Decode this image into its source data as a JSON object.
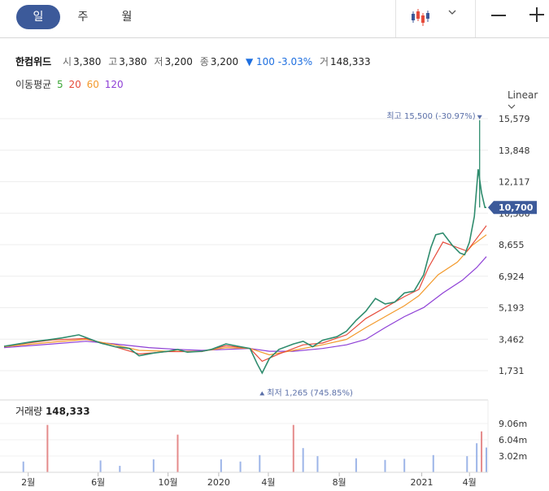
{
  "toolbar": {
    "tabs": [
      "일",
      "주",
      "월"
    ],
    "active_tab": "일",
    "chart_type_icon": "candlestick-icon",
    "dropdown_icon": "chevron-down-icon",
    "zoom_out_icon": "minus-icon",
    "zoom_in_icon": "plus-icon"
  },
  "quote": {
    "name": "한컴위드",
    "open_label": "시",
    "open": "3,380",
    "high_label": "고",
    "high": "3,380",
    "low_label": "저",
    "low": "3,200",
    "close_label": "종",
    "close": "3,200",
    "change": "▼ 100 -3.03%",
    "volume_label": "거",
    "volume": "148,333"
  },
  "ma": {
    "label": "이동평균",
    "periods": [
      "5",
      "20",
      "60",
      "120"
    ],
    "colors": [
      "#3aa635",
      "#e64b3b",
      "#f39a2c",
      "#8e3fd6"
    ]
  },
  "scale": {
    "label": "Linear"
  },
  "chart_data": {
    "type": "line",
    "y_ticks": [
      "15,579",
      "13,848",
      "12,117",
      "10,386",
      "8,655",
      "6,924",
      "5,193",
      "3,462",
      "1,731"
    ],
    "ylim": [
      0,
      16500
    ],
    "x_ticks": [
      {
        "label": "2월",
        "t": 0.05
      },
      {
        "label": "6월",
        "t": 0.195
      },
      {
        "label": "10월",
        "t": 0.34
      },
      {
        "label": "2020",
        "t": 0.445
      },
      {
        "label": "4월",
        "t": 0.548
      },
      {
        "label": "8월",
        "t": 0.695
      },
      {
        "label": "2021",
        "t": 0.866
      },
      {
        "label": "4월",
        "t": 0.965
      }
    ],
    "price": [
      [
        0,
        3070
      ],
      [
        0.03,
        3200
      ],
      [
        0.06,
        3330
      ],
      [
        0.09,
        3420
      ],
      [
        0.12,
        3530
      ],
      [
        0.155,
        3700
      ],
      [
        0.17,
        3550
      ],
      [
        0.2,
        3250
      ],
      [
        0.23,
        3050
      ],
      [
        0.26,
        2950
      ],
      [
        0.28,
        2550
      ],
      [
        0.31,
        2700
      ],
      [
        0.34,
        2800
      ],
      [
        0.36,
        2900
      ],
      [
        0.38,
        2750
      ],
      [
        0.41,
        2800
      ],
      [
        0.43,
        2900
      ],
      [
        0.46,
        3200
      ],
      [
        0.49,
        3050
      ],
      [
        0.51,
        2950
      ],
      [
        0.525,
        2100
      ],
      [
        0.535,
        1600
      ],
      [
        0.55,
        2400
      ],
      [
        0.57,
        2900
      ],
      [
        0.6,
        3200
      ],
      [
        0.62,
        3350
      ],
      [
        0.64,
        3050
      ],
      [
        0.66,
        3400
      ],
      [
        0.69,
        3600
      ],
      [
        0.71,
        3900
      ],
      [
        0.73,
        4500
      ],
      [
        0.75,
        5000
      ],
      [
        0.77,
        5700
      ],
      [
        0.79,
        5400
      ],
      [
        0.81,
        5500
      ],
      [
        0.83,
        6000
      ],
      [
        0.85,
        6100
      ],
      [
        0.87,
        7000
      ],
      [
        0.885,
        8500
      ],
      [
        0.895,
        9200
      ],
      [
        0.91,
        9300
      ],
      [
        0.93,
        8600
      ],
      [
        0.945,
        8200
      ],
      [
        0.955,
        8100
      ],
      [
        0.965,
        8800
      ],
      [
        0.975,
        10200
      ],
      [
        0.983,
        12800
      ],
      [
        0.99,
        11500
      ],
      [
        0.997,
        10700
      ],
      [
        1.0,
        10700
      ]
    ],
    "ma20": [
      [
        0,
        3080
      ],
      [
        0.1,
        3420
      ],
      [
        0.17,
        3500
      ],
      [
        0.23,
        3050
      ],
      [
        0.28,
        2650
      ],
      [
        0.34,
        2780
      ],
      [
        0.41,
        2780
      ],
      [
        0.46,
        3100
      ],
      [
        0.51,
        2950
      ],
      [
        0.535,
        2250
      ],
      [
        0.57,
        2650
      ],
      [
        0.62,
        3150
      ],
      [
        0.66,
        3250
      ],
      [
        0.71,
        3700
      ],
      [
        0.75,
        4600
      ],
      [
        0.79,
        5200
      ],
      [
        0.83,
        5800
      ],
      [
        0.86,
        6200
      ],
      [
        0.88,
        7400
      ],
      [
        0.91,
        8800
      ],
      [
        0.94,
        8500
      ],
      [
        0.96,
        8300
      ],
      [
        0.98,
        9000
      ],
      [
        1.0,
        9700
      ]
    ],
    "ma60": [
      [
        0,
        3050
      ],
      [
        0.1,
        3300
      ],
      [
        0.17,
        3450
      ],
      [
        0.23,
        3150
      ],
      [
        0.28,
        2850
      ],
      [
        0.34,
        2800
      ],
      [
        0.41,
        2800
      ],
      [
        0.46,
        3000
      ],
      [
        0.51,
        2950
      ],
      [
        0.55,
        2600
      ],
      [
        0.6,
        2850
      ],
      [
        0.66,
        3150
      ],
      [
        0.71,
        3450
      ],
      [
        0.75,
        4100
      ],
      [
        0.79,
        4700
      ],
      [
        0.83,
        5300
      ],
      [
        0.86,
        5850
      ],
      [
        0.9,
        7000
      ],
      [
        0.94,
        7700
      ],
      [
        0.97,
        8600
      ],
      [
        1.0,
        9200
      ]
    ],
    "ma120": [
      [
        0,
        3000
      ],
      [
        0.1,
        3200
      ],
      [
        0.17,
        3350
      ],
      [
        0.23,
        3200
      ],
      [
        0.3,
        3000
      ],
      [
        0.36,
        2900
      ],
      [
        0.41,
        2850
      ],
      [
        0.46,
        2900
      ],
      [
        0.51,
        2950
      ],
      [
        0.55,
        2800
      ],
      [
        0.6,
        2800
      ],
      [
        0.66,
        2950
      ],
      [
        0.71,
        3150
      ],
      [
        0.75,
        3450
      ],
      [
        0.79,
        4100
      ],
      [
        0.83,
        4700
      ],
      [
        0.87,
        5200
      ],
      [
        0.91,
        6000
      ],
      [
        0.95,
        6700
      ],
      [
        0.98,
        7400
      ],
      [
        1.0,
        8000
      ]
    ],
    "volume": [
      [
        0.04,
        2.0
      ],
      [
        0.09,
        8.8
      ],
      [
        0.2,
        2.2
      ],
      [
        0.24,
        1.2
      ],
      [
        0.31,
        2.4
      ],
      [
        0.36,
        7.0
      ],
      [
        0.45,
        2.4
      ],
      [
        0.49,
        2.0
      ],
      [
        0.53,
        3.2
      ],
      [
        0.6,
        8.8
      ],
      [
        0.62,
        4.5
      ],
      [
        0.65,
        3.0
      ],
      [
        0.73,
        2.6
      ],
      [
        0.79,
        2.3
      ],
      [
        0.83,
        2.5
      ],
      [
        0.89,
        3.2
      ],
      [
        0.96,
        3.0
      ],
      [
        0.98,
        5.4
      ],
      [
        0.99,
        7.6
      ],
      [
        1.0,
        4.6
      ]
    ],
    "vol_ticks": [
      "9.06m",
      "6.04m",
      "3.02m"
    ],
    "vol_max": 10.0,
    "high_label": "최고 15,500 (-30.97%)",
    "low_label": "최저 1,265 (745.85%)",
    "high": {
      "t": 0.986,
      "v": 15500
    },
    "low": {
      "t": 0.535,
      "v": 1265
    },
    "current": "10,700",
    "current_value": 10700
  },
  "volume_panel": {
    "label": "거래량",
    "value": "148,333"
  }
}
